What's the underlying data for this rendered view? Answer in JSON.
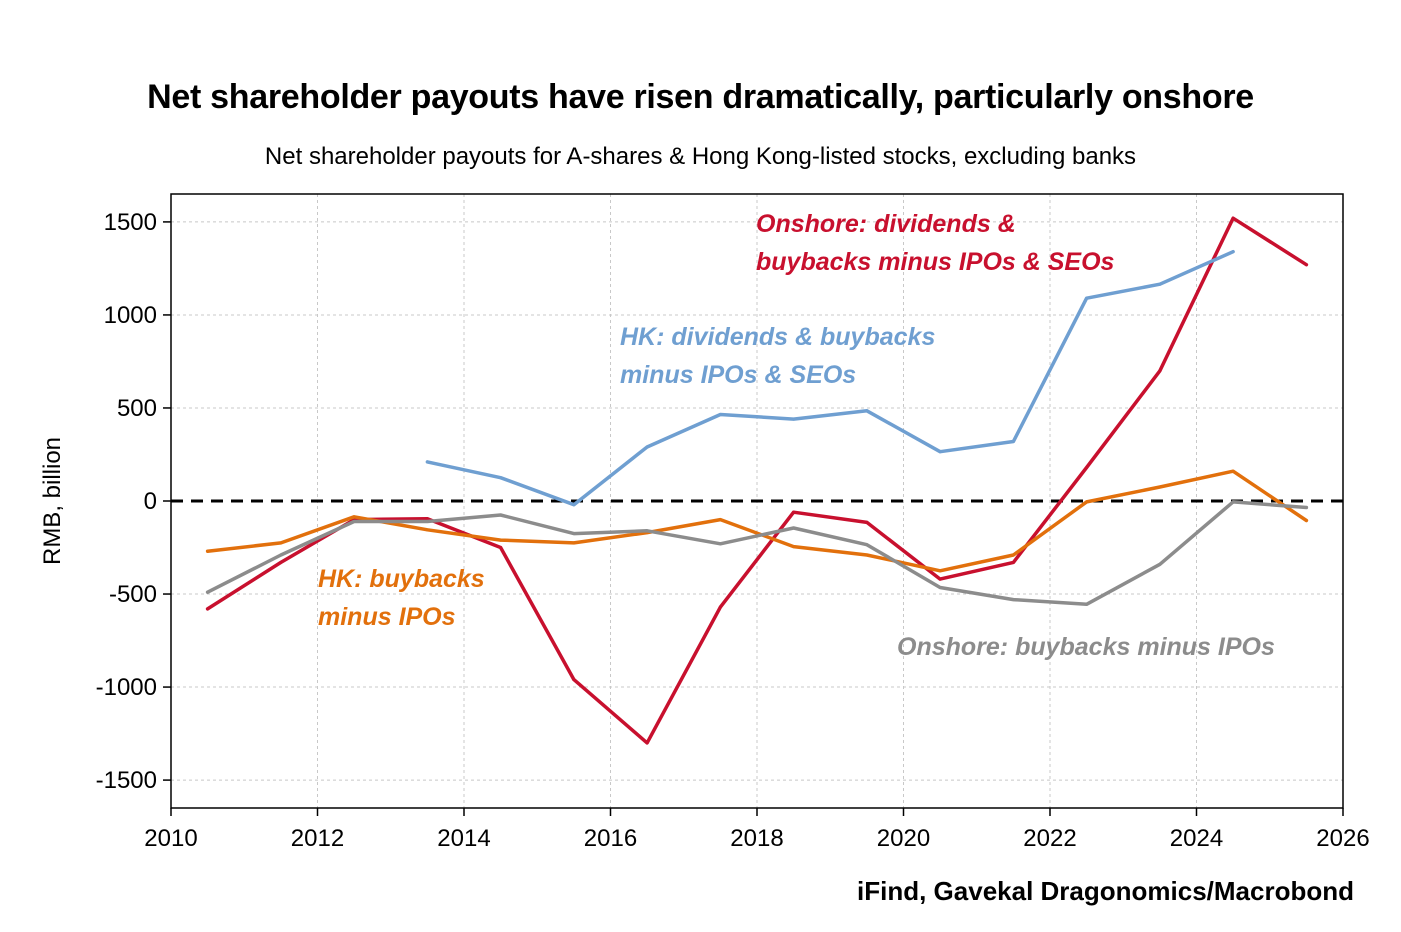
{
  "title": "Net shareholder payouts have risen dramatically, particularly onshore",
  "subtitle": "Net shareholder payouts for A-shares & Hong Kong-listed stocks, excluding banks",
  "source": "iFind, Gavekal Dragonomics/Macrobond",
  "chart_data": {
    "type": "line",
    "ylabel": "RMB, billion",
    "xlim": [
      2010,
      2026
    ],
    "ylim": [
      -1650,
      1650
    ],
    "x_ticks": [
      2010,
      2012,
      2014,
      2016,
      2018,
      2020,
      2022,
      2024,
      2026
    ],
    "y_ticks": [
      1500,
      1000,
      500,
      0,
      -500,
      -1000,
      -1500
    ],
    "grid": true,
    "zero_line": "dashed",
    "series": [
      {
        "name": "Onshore: dividends & buybacks minus IPOs & SEOs",
        "color": "#c8102e",
        "x": [
          2010.5,
          2011.5,
          2012.5,
          2013.5,
          2014.5,
          2015.5,
          2016.5,
          2017.5,
          2018.5,
          2019.5,
          2020.5,
          2021.5,
          2022.5,
          2023.5,
          2024.5,
          2025.5
        ],
        "y": [
          -580,
          -330,
          -100,
          -95,
          -250,
          -960,
          -1300,
          -570,
          -60,
          -115,
          -420,
          -330,
          180,
          700,
          1520,
          1270
        ]
      },
      {
        "name": "HK: dividends & buybacks minus IPOs & SEOs",
        "color": "#6f9fd1",
        "x": [
          2013.5,
          2014.5,
          2015.5,
          2016.5,
          2017.5,
          2018.5,
          2019.5,
          2020.5,
          2021.5,
          2022.5,
          2023.5,
          2024.5
        ],
        "y": [
          210,
          125,
          -20,
          290,
          465,
          440,
          485,
          265,
          320,
          1090,
          1165,
          1340
        ]
      },
      {
        "name": "HK: buybacks minus IPOs",
        "color": "#e2700c",
        "x": [
          2010.5,
          2011.5,
          2012.5,
          2013.5,
          2014.5,
          2015.5,
          2016.5,
          2017.5,
          2018.5,
          2019.5,
          2020.5,
          2021.5,
          2022.5,
          2023.5,
          2024.5,
          2025.5
        ],
        "y": [
          -270,
          -225,
          -85,
          -155,
          -210,
          -225,
          -170,
          -100,
          -245,
          -290,
          -375,
          -290,
          -5,
          75,
          160,
          -105
        ]
      },
      {
        "name": "Onshore: buybacks minus IPOs",
        "color": "#8c8c8c",
        "x": [
          2010.5,
          2011.5,
          2012.5,
          2013.5,
          2014.5,
          2015.5,
          2016.5,
          2017.5,
          2018.5,
          2019.5,
          2020.5,
          2021.5,
          2022.5,
          2023.5,
          2024.5,
          2025.5
        ],
        "y": [
          -490,
          -290,
          -110,
          -110,
          -75,
          -175,
          -160,
          -230,
          -145,
          -235,
          -465,
          -530,
          -555,
          -340,
          -5,
          -35
        ]
      }
    ],
    "annotations": [
      {
        "lines": [
          "Onshore: dividends &",
          "buybacks minus IPOs & SEOs"
        ],
        "color": "#c8102e"
      },
      {
        "lines": [
          "HK: dividends & buybacks",
          "minus IPOs & SEOs"
        ],
        "color": "#6f9fd1"
      },
      {
        "lines": [
          "HK: buybacks",
          "minus IPOs"
        ],
        "color": "#e2700c"
      },
      {
        "lines": [
          "Onshore: buybacks minus IPOs"
        ],
        "color": "#8c8c8c"
      }
    ]
  }
}
